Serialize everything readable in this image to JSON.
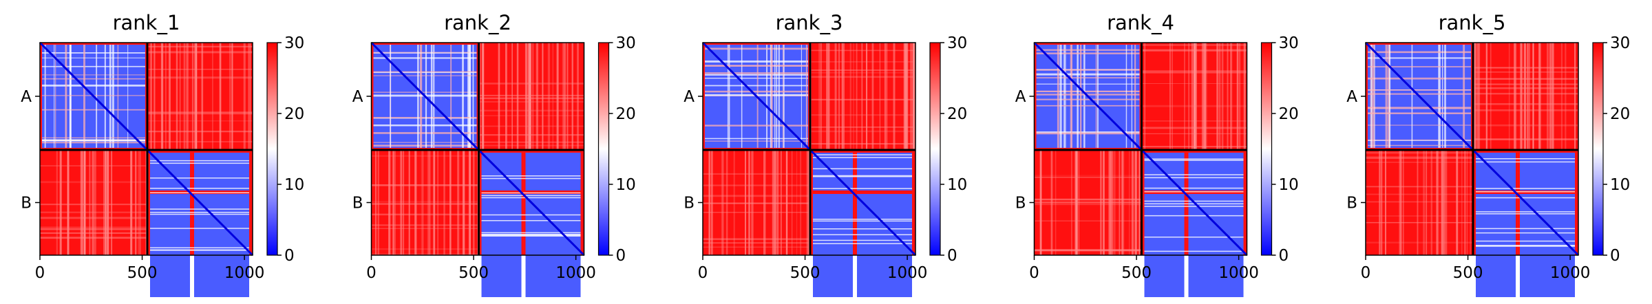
{
  "chart_data": [
    {
      "type": "heatmap",
      "title": "rank_1",
      "xlim": [
        0,
        1040
      ],
      "x_ticks": [
        "0",
        "500",
        "1000"
      ],
      "x_tick_values": [
        0,
        500,
        1000
      ],
      "y_categories": [
        "A",
        "B"
      ],
      "chain_boundary": 525,
      "colorbar": {
        "min": 0,
        "max": 30,
        "ticks": [
          "0",
          "10",
          "20",
          "30"
        ],
        "tick_values": [
          0,
          10,
          20,
          30
        ],
        "colors": [
          "#0000ff",
          "#ffffff",
          "#ff0000"
        ]
      },
      "blocks": [
        [
          "low",
          "high"
        ],
        [
          "high",
          "low"
        ]
      ]
    },
    {
      "type": "heatmap",
      "title": "rank_2",
      "xlim": [
        0,
        1040
      ],
      "x_ticks": [
        "0",
        "500",
        "1000"
      ],
      "x_tick_values": [
        0,
        500,
        1000
      ],
      "y_categories": [
        "A",
        "B"
      ],
      "chain_boundary": 525,
      "colorbar": {
        "min": 0,
        "max": 30,
        "ticks": [
          "0",
          "10",
          "20",
          "30"
        ],
        "tick_values": [
          0,
          10,
          20,
          30
        ],
        "colors": [
          "#0000ff",
          "#ffffff",
          "#ff0000"
        ]
      },
      "blocks": [
        [
          "low",
          "high"
        ],
        [
          "high",
          "low"
        ]
      ]
    },
    {
      "type": "heatmap",
      "title": "rank_3",
      "xlim": [
        0,
        1040
      ],
      "x_ticks": [
        "0",
        "500",
        "1000"
      ],
      "x_tick_values": [
        0,
        500,
        1000
      ],
      "y_categories": [
        "A",
        "B"
      ],
      "chain_boundary": 525,
      "colorbar": {
        "min": 0,
        "max": 30,
        "ticks": [
          "0",
          "10",
          "20",
          "30"
        ],
        "tick_values": [
          0,
          10,
          20,
          30
        ],
        "colors": [
          "#0000ff",
          "#ffffff",
          "#ff0000"
        ]
      },
      "blocks": [
        [
          "low",
          "high"
        ],
        [
          "high",
          "low"
        ]
      ]
    },
    {
      "type": "heatmap",
      "title": "rank_4",
      "xlim": [
        0,
        1040
      ],
      "x_ticks": [
        "0",
        "500",
        "1000"
      ],
      "x_tick_values": [
        0,
        500,
        1000
      ],
      "y_categories": [
        "A",
        "B"
      ],
      "chain_boundary": 525,
      "colorbar": {
        "min": 0,
        "max": 30,
        "ticks": [
          "0",
          "10",
          "20",
          "30"
        ],
        "tick_values": [
          0,
          10,
          20,
          30
        ],
        "colors": [
          "#0000ff",
          "#ffffff",
          "#ff0000"
        ]
      },
      "blocks": [
        [
          "low",
          "high"
        ],
        [
          "high",
          "low"
        ]
      ]
    },
    {
      "type": "heatmap",
      "title": "rank_5",
      "xlim": [
        0,
        1040
      ],
      "x_ticks": [
        "0",
        "500",
        "1000"
      ],
      "x_tick_values": [
        0,
        500,
        1000
      ],
      "y_categories": [
        "A",
        "B"
      ],
      "chain_boundary": 525,
      "colorbar": {
        "min": 0,
        "max": 30,
        "ticks": [
          "0",
          "10",
          "20",
          "30"
        ],
        "tick_values": [
          0,
          10,
          20,
          30
        ],
        "colors": [
          "#0000ff",
          "#ffffff",
          "#ff0000"
        ]
      },
      "blocks": [
        [
          "low",
          "high"
        ],
        [
          "high",
          "low"
        ]
      ]
    }
  ]
}
